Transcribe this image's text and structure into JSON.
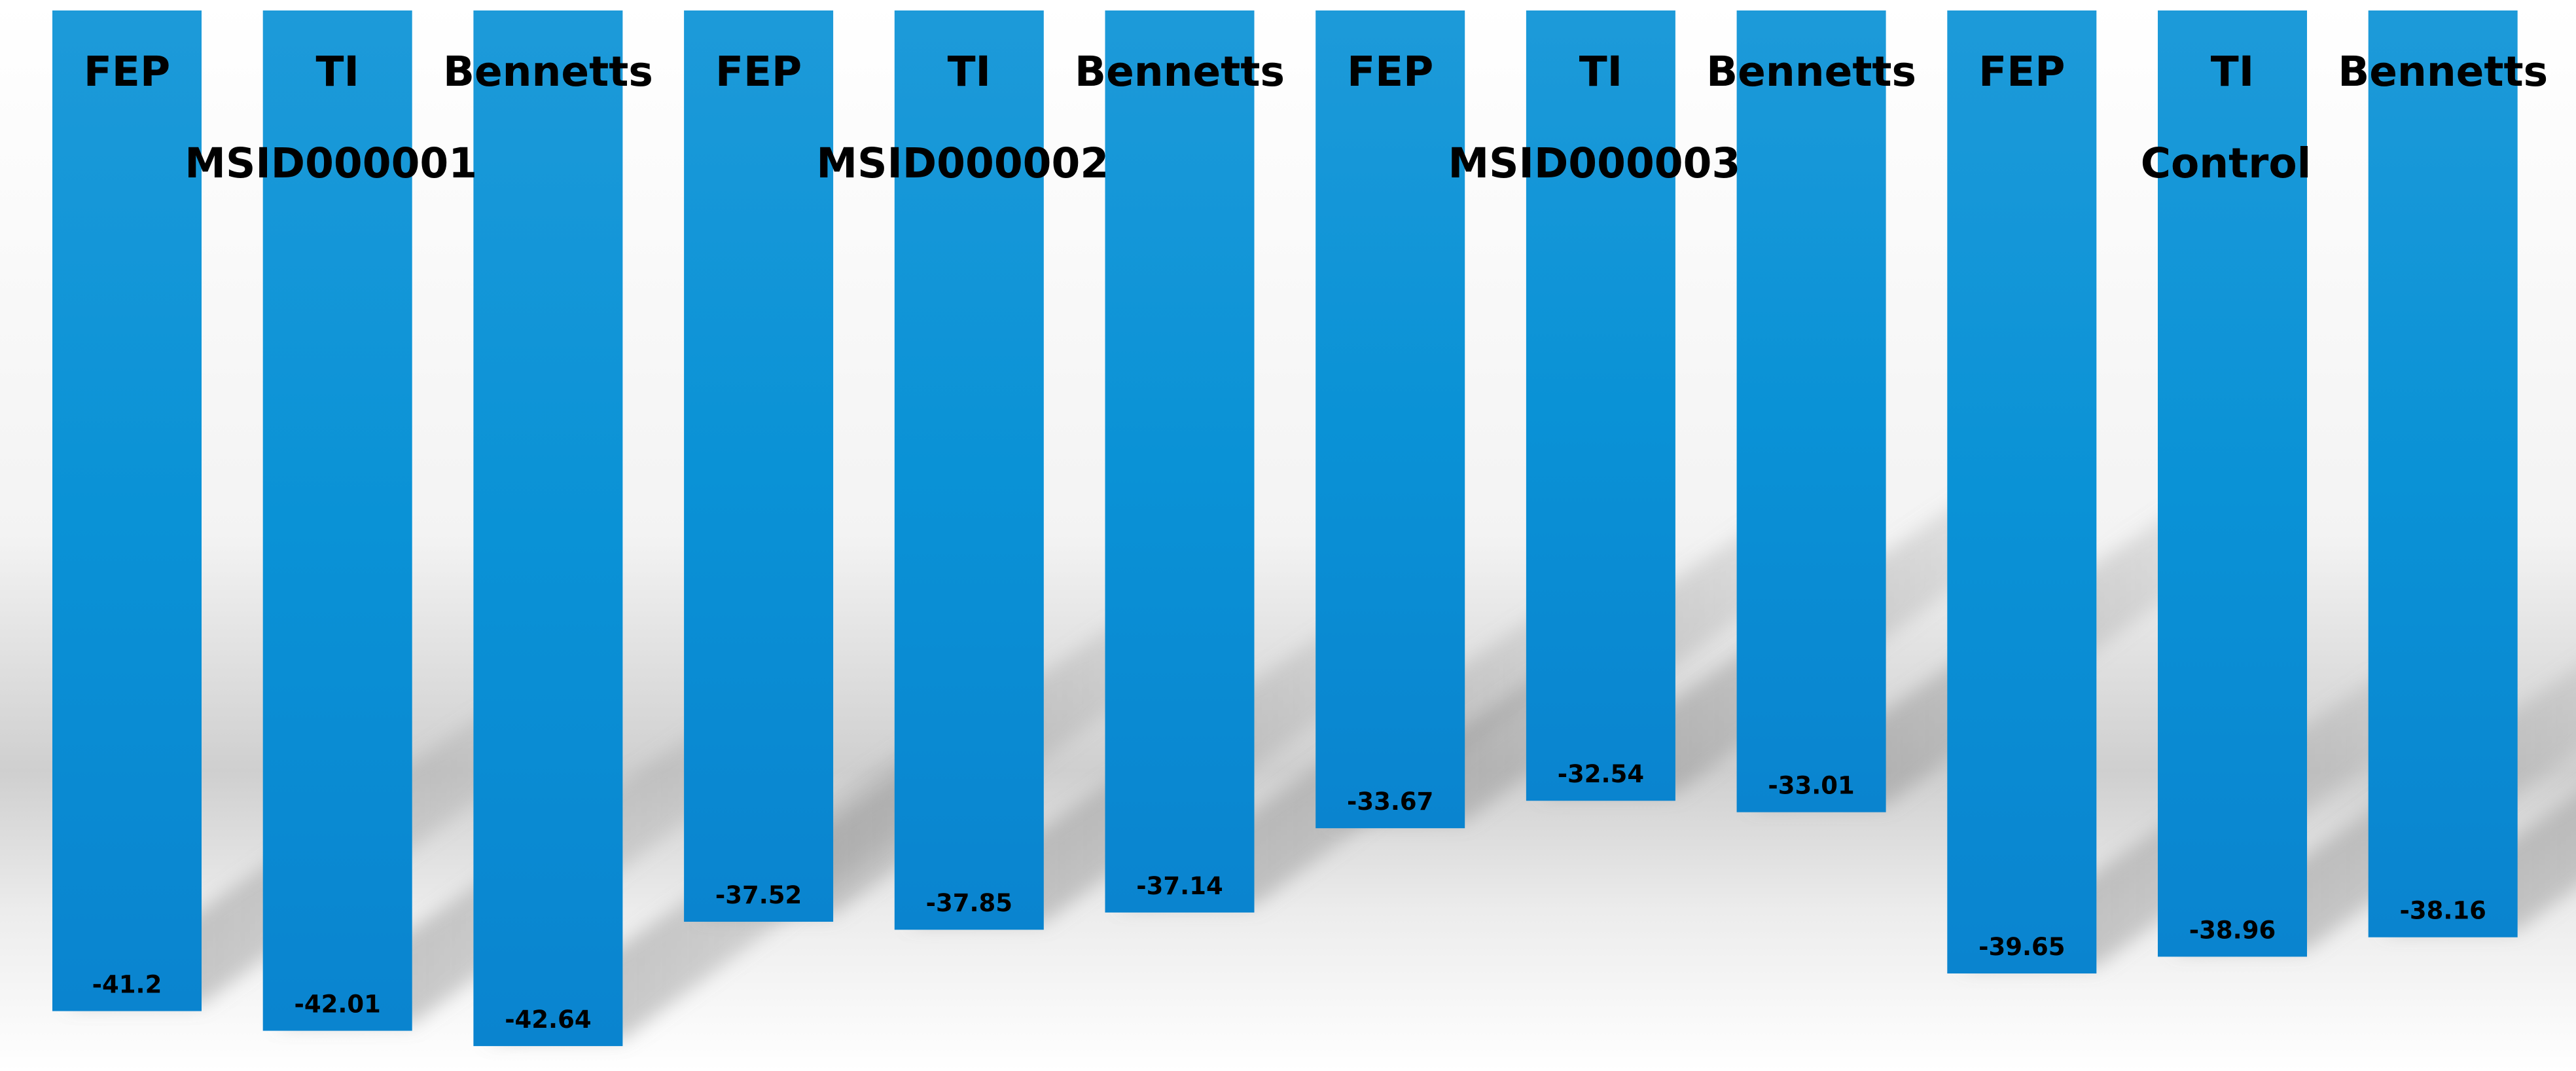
{
  "chart_data": {
    "type": "bar",
    "title": "",
    "xlabel": "",
    "ylabel": "",
    "legend": "none",
    "grid": false,
    "ylim": [
      -43,
      0
    ],
    "bar_color": "#0b8ed6",
    "groups": [
      {
        "name": "MSID000001",
        "bars": [
          {
            "category": "FEP",
            "value": -41.2,
            "label": "-41.2"
          },
          {
            "category": "TI",
            "value": -42.01,
            "label": "-42.01"
          },
          {
            "category": "Bennetts",
            "value": -42.64,
            "label": "-42.64"
          }
        ]
      },
      {
        "name": "MSID000002",
        "bars": [
          {
            "category": "FEP",
            "value": -37.52,
            "label": "-37.52"
          },
          {
            "category": "TI",
            "value": -37.85,
            "label": "-37.85"
          },
          {
            "category": "Bennetts",
            "value": -37.14,
            "label": "-37.14"
          }
        ]
      },
      {
        "name": "MSID000003",
        "bars": [
          {
            "category": "FEP",
            "value": -33.67,
            "label": "-33.67"
          },
          {
            "category": "TI",
            "value": -32.54,
            "label": "-32.54"
          },
          {
            "category": "Bennetts",
            "value": -33.01,
            "label": "-33.01"
          }
        ]
      },
      {
        "name": "Control",
        "bars": [
          {
            "category": "FEP",
            "value": -39.65,
            "label": "-39.65"
          },
          {
            "category": "TI",
            "value": -38.96,
            "label": "-38.96"
          },
          {
            "category": "Bennetts",
            "value": -38.16,
            "label": "-38.16"
          }
        ]
      }
    ]
  }
}
